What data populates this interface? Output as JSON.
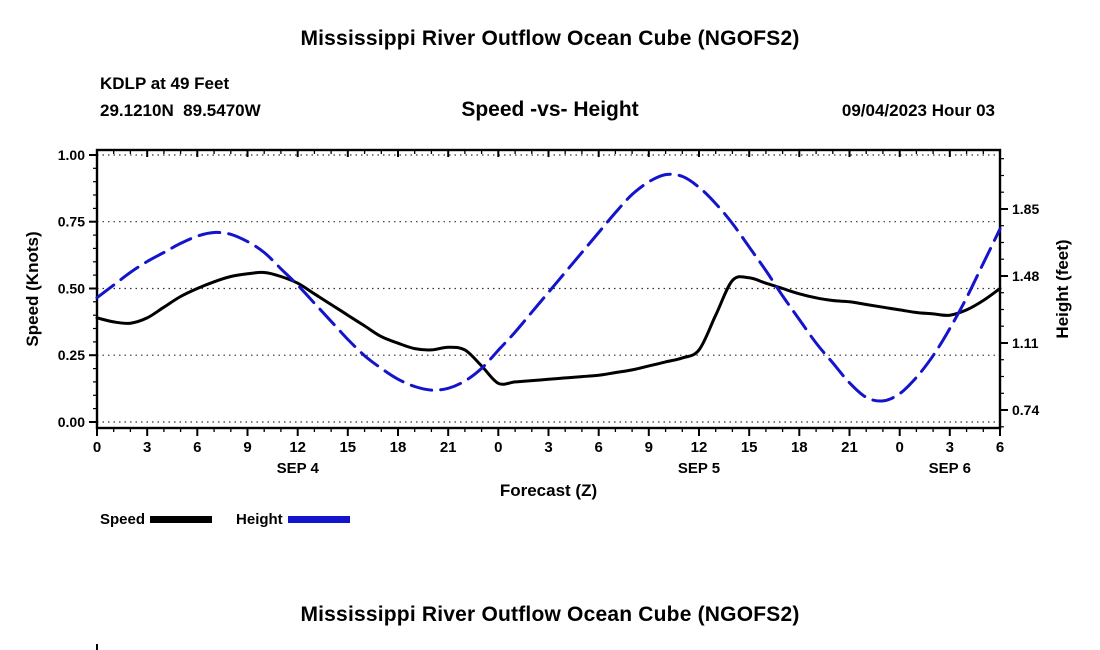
{
  "page": {
    "title_top": "Mississippi River Outflow Ocean Cube (NGOFS2)",
    "title_bottom": "Mississippi River Outflow Ocean Cube (NGOFS2)"
  },
  "header": {
    "station_line": "KDLP at 49 Feet",
    "coords_line": "29.1210N  89.5470W",
    "plot_heading": "Speed -vs- Height",
    "forecast_datetime": "09/04/2023 Hour 03"
  },
  "legend": {
    "speed_label": "Speed",
    "height_label": "Height"
  },
  "colors": {
    "speed_line": "#000000",
    "height_line": "#1414cc",
    "grid_dots": "#333333"
  },
  "chart_data": {
    "type": "line",
    "title": "Speed -vs- Height",
    "xlabel": "Forecast (Z)",
    "ylabel_left": "Speed (Knots)",
    "ylabel_right": "Height (feet)",
    "xlim": [
      0,
      54
    ],
    "ylim_left": [
      -0.0225,
      1.0187
    ],
    "ylim_right": [
      0.6406,
      2.1758
    ],
    "x_major_step": 3,
    "x_minor_step": 1,
    "x_tick_hours": [
      0,
      3,
      6,
      9,
      12,
      15,
      18,
      21,
      24,
      27,
      30,
      33,
      36,
      39,
      42,
      45,
      48,
      51,
      54
    ],
    "x_tick_labels": [
      "0",
      "3",
      "6",
      "9",
      "12",
      "15",
      "18",
      "21",
      "0",
      "3",
      "6",
      "9",
      "12",
      "15",
      "18",
      "21",
      "0",
      "3",
      "6"
    ],
    "date_labels": [
      {
        "text": "SEP 4",
        "hour": 12
      },
      {
        "text": "SEP 5",
        "hour": 36
      },
      {
        "text": "SEP 6",
        "hour": 51
      }
    ],
    "left_ticks": {
      "values": [
        0,
        0.25,
        0.5,
        0.75,
        1.0
      ],
      "labels": [
        "0.00",
        "0.25",
        "0.50",
        "0.75",
        "1.00"
      ],
      "minor_step": 0.05
    },
    "right_ticks": {
      "values": [
        0.74,
        1.11,
        1.48,
        1.85
      ],
      "labels": [
        "0.74",
        "1.11",
        "1.48",
        "1.85"
      ],
      "minor_step": 0.0925
    },
    "grid_values_left": [
      0,
      0.25,
      0.5,
      0.75,
      1.0
    ],
    "series": [
      {
        "name": "Speed",
        "axis": "left",
        "style": "solid",
        "color": "#000000",
        "x_start": 0,
        "x_step": 1,
        "values": [
          0.39,
          0.375,
          0.37,
          0.39,
          0.43,
          0.47,
          0.5,
          0.525,
          0.545,
          0.555,
          0.56,
          0.545,
          0.52,
          0.48,
          0.44,
          0.4,
          0.36,
          0.32,
          0.295,
          0.275,
          0.27,
          0.28,
          0.27,
          0.21,
          0.145,
          0.15,
          0.155,
          0.16,
          0.165,
          0.17,
          0.175,
          0.185,
          0.195,
          0.21,
          0.225,
          0.24,
          0.27,
          0.4,
          0.53,
          0.54,
          0.52,
          0.5,
          0.48,
          0.465,
          0.455,
          0.45,
          0.44,
          0.43,
          0.42,
          0.41,
          0.405,
          0.4,
          0.42,
          0.455,
          0.5
        ]
      },
      {
        "name": "Height",
        "axis": "right",
        "style": "dashed",
        "color": "#1414cc",
        "x_start": 0,
        "x_step": 1,
        "values": [
          1.36,
          1.43,
          1.5,
          1.56,
          1.61,
          1.66,
          1.7,
          1.72,
          1.71,
          1.67,
          1.61,
          1.52,
          1.43,
          1.33,
          1.23,
          1.13,
          1.04,
          0.97,
          0.91,
          0.87,
          0.85,
          0.86,
          0.9,
          0.97,
          1.07,
          1.17,
          1.28,
          1.39,
          1.5,
          1.61,
          1.72,
          1.83,
          1.93,
          2.0,
          2.04,
          2.03,
          1.97,
          1.88,
          1.77,
          1.64,
          1.51,
          1.37,
          1.24,
          1.11,
          1.0,
          0.89,
          0.81,
          0.79,
          0.83,
          0.92,
          1.04,
          1.19,
          1.36,
          1.55,
          1.74
        ]
      }
    ]
  }
}
